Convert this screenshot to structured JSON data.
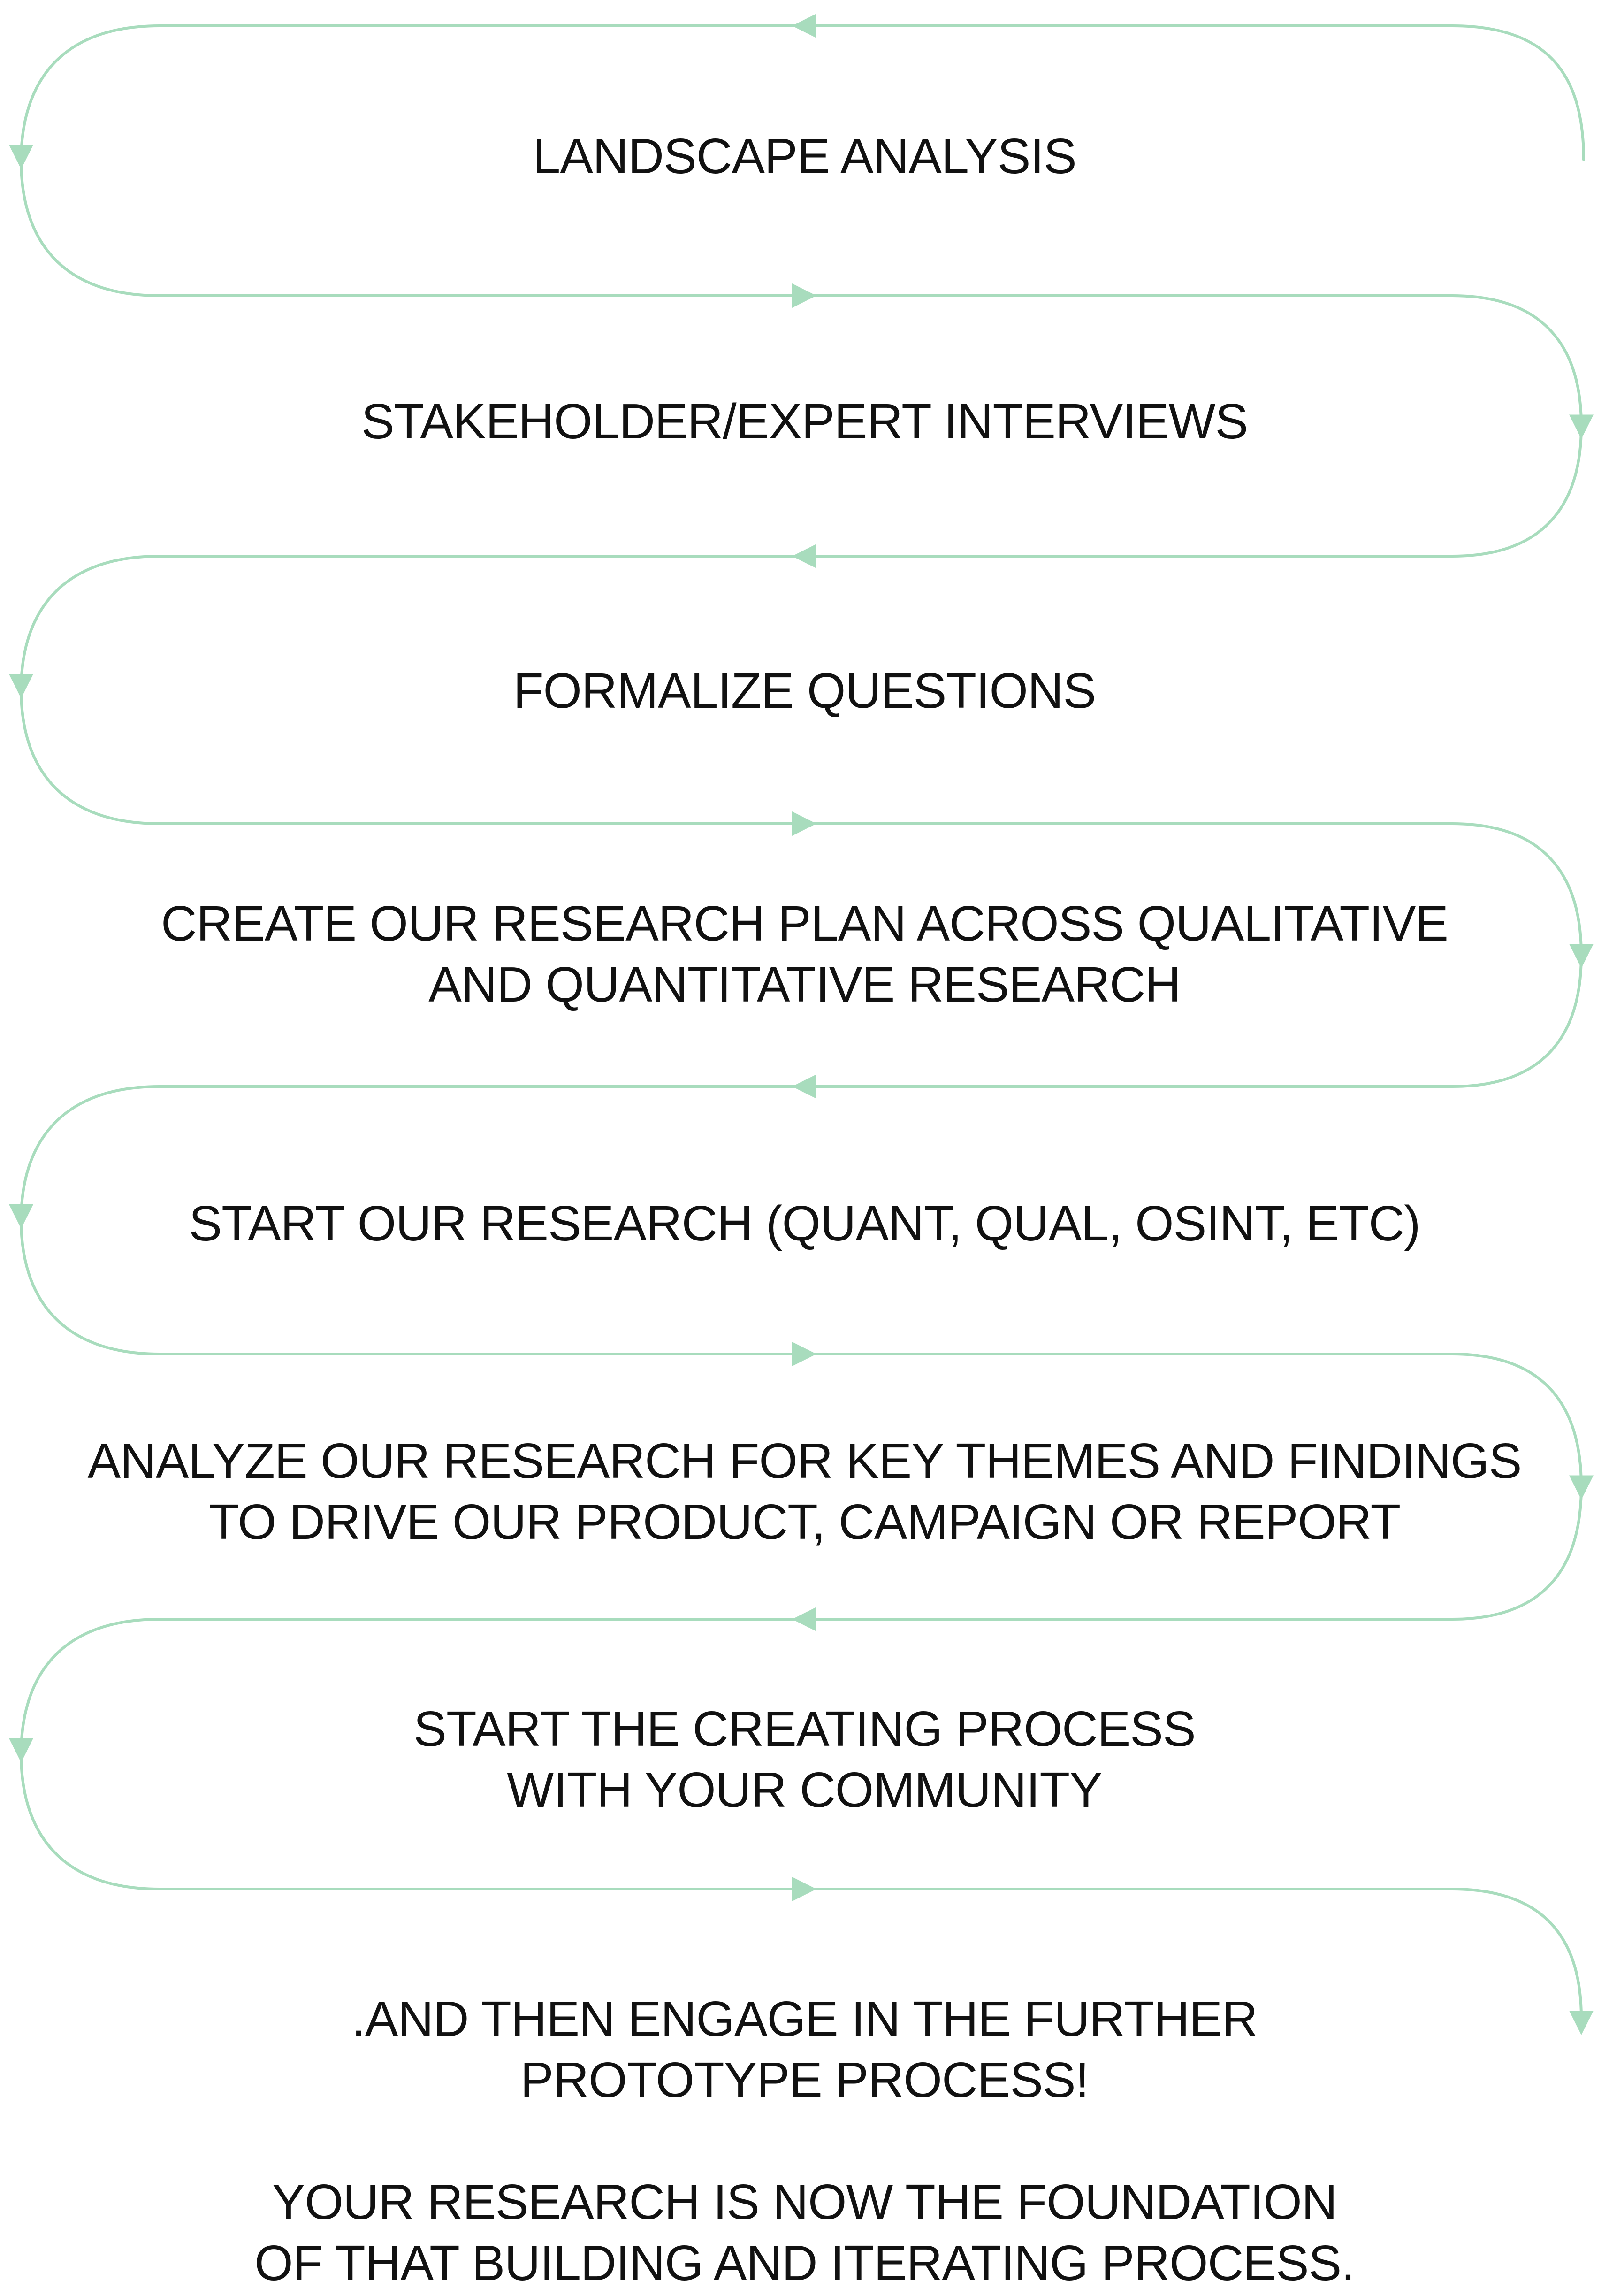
{
  "diagram": {
    "colors": {
      "connector": "#a8dcbd",
      "text": "#111111",
      "background": "#ffffff"
    },
    "arrow_icon": "triangle-arrowhead",
    "steps": [
      {
        "lines": [
          "LANDSCAPE ANALYSIS"
        ]
      },
      {
        "lines": [
          "STAKEHOLDER/EXPERT INTERVIEWS"
        ]
      },
      {
        "lines": [
          "FORMALIZE QUESTIONS"
        ]
      },
      {
        "lines": [
          "CREATE OUR RESEARCH PLAN ACROSS QUALITATIVE",
          "AND QUANTITATIVE RESEARCH"
        ]
      },
      {
        "lines": [
          "START OUR RESEARCH (QUANT, QUAL, OSINT, ETC)"
        ]
      },
      {
        "lines": [
          "ANALYZE OUR RESEARCH FOR KEY THEMES AND FINDINGS",
          "TO DRIVE OUR PRODUCT, CAMPAIGN OR REPORT"
        ]
      },
      {
        "lines": [
          "START THE CREATING PROCESS",
          "WITH YOUR COMMUNITY"
        ]
      },
      {
        "lines": [
          ".AND THEN ENGAGE IN THE FURTHER",
          "PROTOTYPE PROCESS!"
        ]
      }
    ],
    "closing": {
      "lines": [
        "YOUR RESEARCH IS NOW THE FOUNDATION",
        "OF THAT BUILDING AND ITERATING PROCESS."
      ]
    }
  }
}
